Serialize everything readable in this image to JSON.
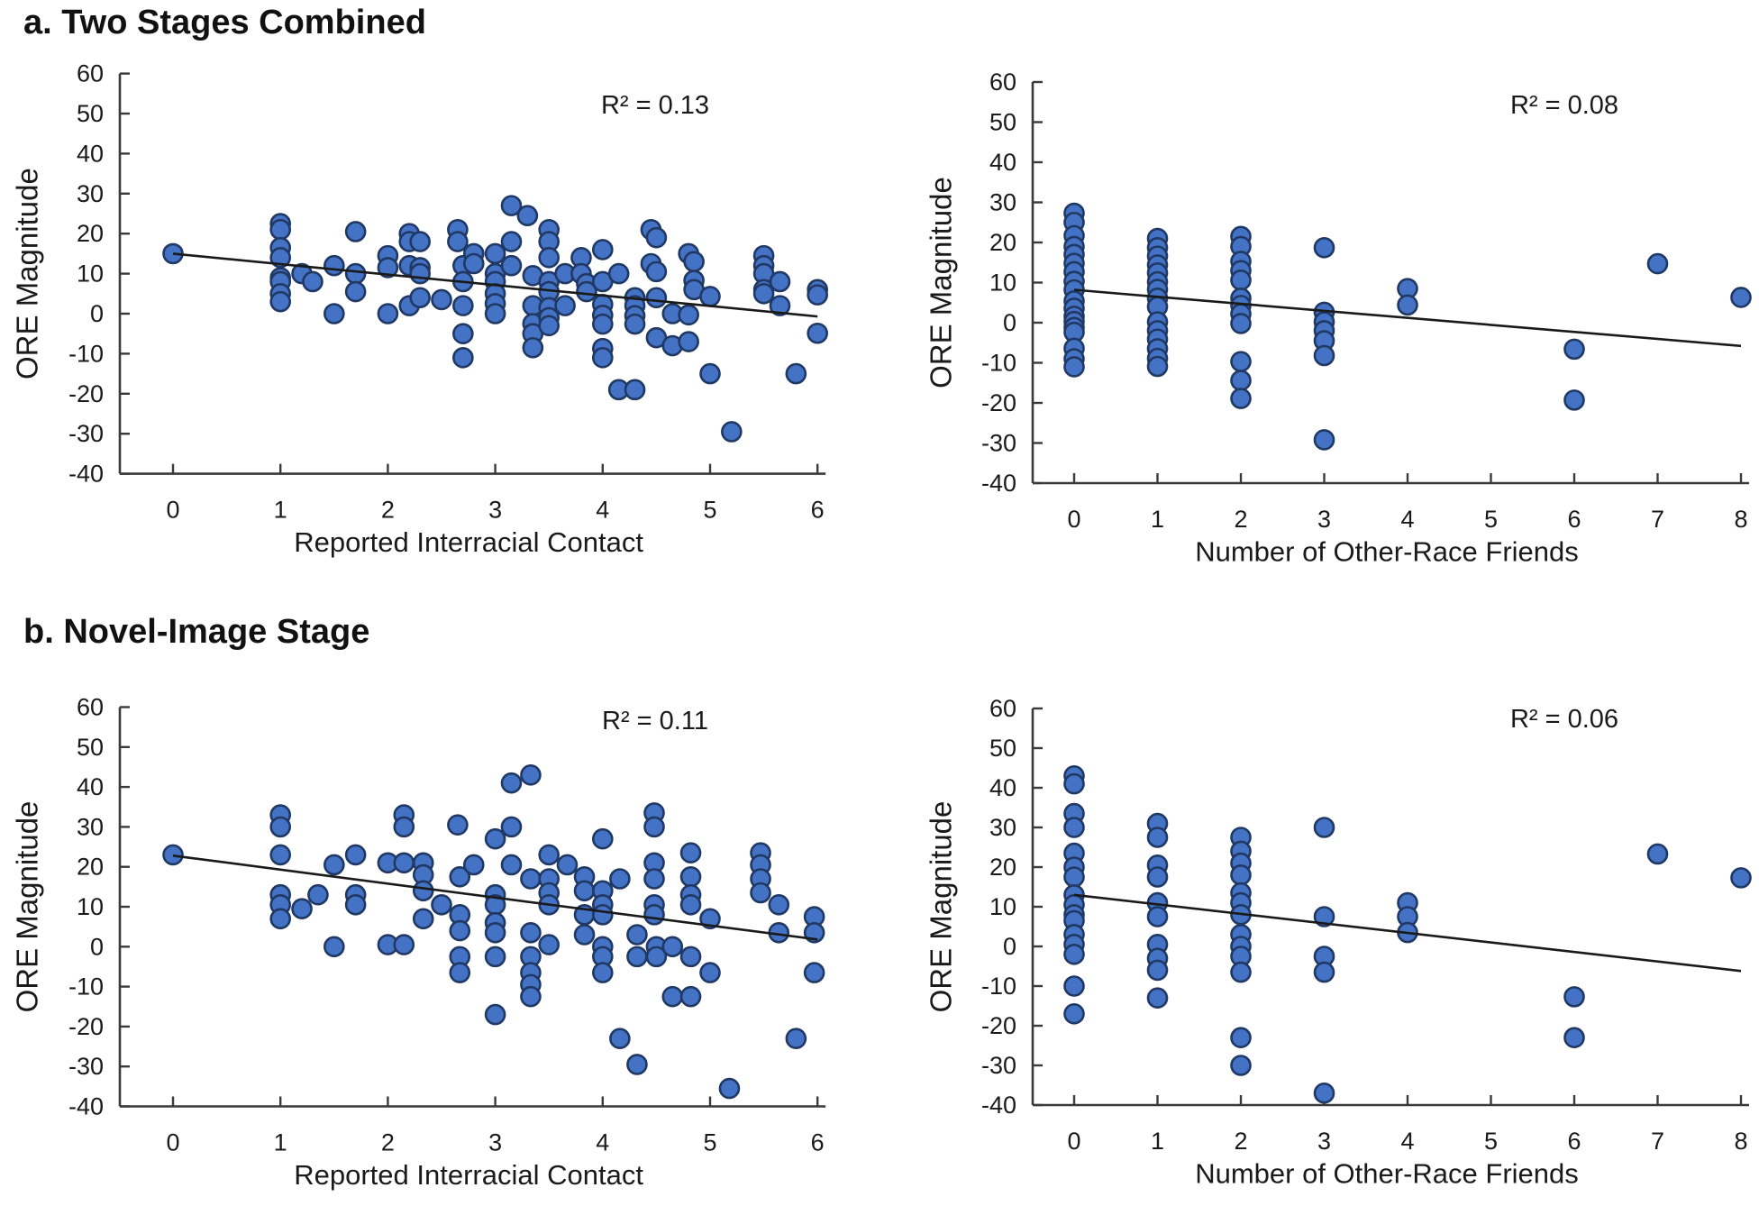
{
  "figure": {
    "panel_a_label": "a. Two Stages Combined",
    "panel_b_label": "b. Novel-Image Stage"
  },
  "colors": {
    "marker_fill": "#4472C4",
    "marker_stroke": "#203864",
    "trendline": "#1a1a1a",
    "axis": "#3a3a3a",
    "text": "#1a1a1a"
  },
  "chart_data": [
    {
      "id": "combined-contact",
      "type": "scatter",
      "panel": "a",
      "r2_label": "R² = 0.13",
      "xlabel": "Reported Interracial Contact",
      "ylabel": "ORE Magnitude",
      "xlim": [
        0,
        6
      ],
      "ylim": [
        -40,
        60
      ],
      "xticks": [
        0,
        1,
        2,
        3,
        4,
        5,
        6
      ],
      "yticks": [
        60,
        50,
        40,
        30,
        20,
        10,
        0,
        -10,
        -20,
        -30,
        -40
      ],
      "grid": false,
      "legend": "none",
      "trendline": {
        "x1": 0,
        "y1": 15,
        "x2": 6,
        "y2": -0.7
      },
      "points": [
        [
          0,
          15
        ],
        [
          1,
          22.5
        ],
        [
          1,
          21
        ],
        [
          1,
          16.5
        ],
        [
          1,
          14
        ],
        [
          1,
          9
        ],
        [
          1,
          8
        ],
        [
          1,
          5
        ],
        [
          1,
          3
        ],
        [
          1.2,
          10
        ],
        [
          1.3,
          8
        ],
        [
          1.5,
          12
        ],
        [
          1.5,
          0
        ],
        [
          1.7,
          20.5
        ],
        [
          1.7,
          10
        ],
        [
          1.7,
          5.5
        ],
        [
          2,
          14.5
        ],
        [
          2,
          11.5
        ],
        [
          2,
          0
        ],
        [
          2.2,
          20
        ],
        [
          2.2,
          18
        ],
        [
          2.2,
          12
        ],
        [
          2.2,
          2
        ],
        [
          2.3,
          18
        ],
        [
          2.3,
          11.5
        ],
        [
          2.3,
          10
        ],
        [
          2.3,
          4
        ],
        [
          2.5,
          3.5
        ],
        [
          2.65,
          21
        ],
        [
          2.65,
          18
        ],
        [
          2.7,
          12
        ],
        [
          2.7,
          8
        ],
        [
          2.7,
          2
        ],
        [
          2.7,
          -5
        ],
        [
          2.7,
          -11
        ],
        [
          2.8,
          15
        ],
        [
          2.8,
          12.5
        ],
        [
          3,
          15
        ],
        [
          3,
          10
        ],
        [
          3,
          8
        ],
        [
          3,
          5
        ],
        [
          3,
          2.5
        ],
        [
          3,
          0
        ],
        [
          3.15,
          27
        ],
        [
          3.3,
          24.5
        ],
        [
          3.15,
          18
        ],
        [
          3.15,
          12
        ],
        [
          3.35,
          9.5
        ],
        [
          3.35,
          2
        ],
        [
          3.35,
          -2.5
        ],
        [
          3.35,
          -5
        ],
        [
          3.35,
          -8.5
        ],
        [
          3.5,
          21
        ],
        [
          3.5,
          18
        ],
        [
          3.5,
          14
        ],
        [
          3.5,
          8
        ],
        [
          3.5,
          5.5
        ],
        [
          3.5,
          1.5
        ],
        [
          3.5,
          -1
        ],
        [
          3.5,
          -3
        ],
        [
          3.65,
          10
        ],
        [
          3.65,
          2
        ],
        [
          3.8,
          14
        ],
        [
          3.8,
          10
        ],
        [
          3.85,
          7.5
        ],
        [
          3.85,
          5.5
        ],
        [
          4,
          16
        ],
        [
          4,
          8
        ],
        [
          4,
          2.3
        ],
        [
          4,
          -0.4
        ],
        [
          4,
          -2.6
        ],
        [
          4,
          -8.7
        ],
        [
          4,
          -11
        ],
        [
          4.15,
          10
        ],
        [
          4.15,
          -19
        ],
        [
          4.3,
          -19
        ],
        [
          4.3,
          4
        ],
        [
          4.3,
          2
        ],
        [
          4.3,
          -0.5
        ],
        [
          4.3,
          -2.6
        ],
        [
          4.45,
          21
        ],
        [
          4.5,
          19
        ],
        [
          4.45,
          12.5
        ],
        [
          4.5,
          10.5
        ],
        [
          4.5,
          4
        ],
        [
          4.5,
          -6
        ],
        [
          4.65,
          0
        ],
        [
          4.8,
          -0.3
        ],
        [
          4.65,
          -8
        ],
        [
          4.8,
          -7
        ],
        [
          4.8,
          15
        ],
        [
          4.85,
          13
        ],
        [
          4.85,
          8.3
        ],
        [
          4.85,
          6
        ],
        [
          5,
          4.3
        ],
        [
          5,
          -15
        ],
        [
          5.2,
          -29.5
        ],
        [
          5.5,
          14.5
        ],
        [
          5.5,
          12
        ],
        [
          5.5,
          10
        ],
        [
          5.5,
          6
        ],
        [
          5.5,
          5
        ],
        [
          5.65,
          8
        ],
        [
          5.65,
          2
        ],
        [
          5.8,
          -15
        ],
        [
          6,
          6
        ],
        [
          6,
          4.7
        ],
        [
          6,
          -4.9
        ]
      ]
    },
    {
      "id": "combined-friends",
      "type": "scatter",
      "panel": "a",
      "r2_label": "R² = 0.08",
      "xlabel": "Number of Other-Race Friends",
      "ylabel": "ORE Magnitude",
      "xlim": [
        0,
        8
      ],
      "ylim": [
        -40,
        60
      ],
      "xticks": [
        0,
        1,
        2,
        3,
        4,
        5,
        6,
        7,
        8
      ],
      "yticks": [
        60,
        50,
        40,
        30,
        20,
        10,
        0,
        -10,
        -20,
        -30,
        -40
      ],
      "grid": false,
      "legend": "none",
      "trendline": {
        "x1": 0,
        "y1": 8.2,
        "x2": 8,
        "y2": -5.8
      },
      "points": [
        [
          0,
          27.3
        ],
        [
          0,
          25
        ],
        [
          0,
          21.7
        ],
        [
          0,
          19
        ],
        [
          0,
          17
        ],
        [
          0,
          14.8
        ],
        [
          0,
          12.7
        ],
        [
          0,
          10.3
        ],
        [
          0,
          8.2
        ],
        [
          0,
          5.4
        ],
        [
          0,
          3.6
        ],
        [
          0,
          1.6
        ],
        [
          0,
          0.3
        ],
        [
          0,
          -1.2
        ],
        [
          0,
          -2.4
        ],
        [
          0,
          -6.4
        ],
        [
          0,
          -9
        ],
        [
          0,
          -11
        ],
        [
          1,
          21
        ],
        [
          1,
          18.7
        ],
        [
          1,
          16.6
        ],
        [
          1,
          14.4
        ],
        [
          1,
          12.4
        ],
        [
          1,
          10.2
        ],
        [
          1,
          8.3
        ],
        [
          1,
          6.1
        ],
        [
          1,
          4
        ],
        [
          1,
          0.2
        ],
        [
          1,
          -2
        ],
        [
          1,
          -4.1
        ],
        [
          1,
          -6.5
        ],
        [
          1,
          -8.9
        ],
        [
          1,
          -10.9
        ],
        [
          2,
          21.5
        ],
        [
          2,
          19
        ],
        [
          2,
          15.3
        ],
        [
          2,
          13
        ],
        [
          2,
          10.6
        ],
        [
          2,
          6.1
        ],
        [
          2,
          4.3
        ],
        [
          2,
          2.2
        ],
        [
          2,
          -0.2
        ],
        [
          2,
          -9.7
        ],
        [
          2,
          -14.4
        ],
        [
          2,
          -18.9
        ],
        [
          3,
          18.7
        ],
        [
          3,
          2.6
        ],
        [
          3,
          0.2
        ],
        [
          3,
          -2
        ],
        [
          3,
          -4.5
        ],
        [
          3,
          -8.2
        ],
        [
          3,
          -29.2
        ],
        [
          4,
          8.5
        ],
        [
          4,
          4.4
        ],
        [
          6,
          -6.6
        ],
        [
          6,
          -19.3
        ],
        [
          7,
          14.7
        ],
        [
          8,
          6.3
        ]
      ]
    },
    {
      "id": "novel-contact",
      "type": "scatter",
      "panel": "b",
      "r2_label": "R² = 0.11",
      "xlabel": "Reported Interracial Contact",
      "ylabel": "ORE Magnitude",
      "xlim": [
        0,
        6
      ],
      "ylim": [
        -40,
        60
      ],
      "xticks": [
        0,
        1,
        2,
        3,
        4,
        5,
        6
      ],
      "yticks": [
        60,
        50,
        40,
        30,
        20,
        10,
        0,
        -10,
        -20,
        -30,
        -40
      ],
      "grid": false,
      "legend": "none",
      "trendline": {
        "x1": 0,
        "y1": 22.8,
        "x2": 6,
        "y2": 1.8
      },
      "points": [
        [
          0,
          23
        ],
        [
          1,
          33
        ],
        [
          1,
          30
        ],
        [
          1,
          23
        ],
        [
          1,
          13
        ],
        [
          1,
          10.5
        ],
        [
          1,
          7
        ],
        [
          1.2,
          9.5
        ],
        [
          1.35,
          13
        ],
        [
          1.5,
          20.5
        ],
        [
          1.5,
          0
        ],
        [
          1.7,
          23
        ],
        [
          1.7,
          13
        ],
        [
          1.7,
          10.5
        ],
        [
          2,
          21
        ],
        [
          2,
          0.5
        ],
        [
          2.15,
          33
        ],
        [
          2.15,
          30
        ],
        [
          2.15,
          21
        ],
        [
          2.15,
          0.5
        ],
        [
          2.33,
          21
        ],
        [
          2.33,
          18
        ],
        [
          2.33,
          14
        ],
        [
          2.33,
          7
        ],
        [
          2.5,
          10.5
        ],
        [
          2.65,
          30.5
        ],
        [
          2.67,
          17.5
        ],
        [
          2.67,
          8
        ],
        [
          2.67,
          4
        ],
        [
          2.67,
          -2.5
        ],
        [
          2.67,
          -6.5
        ],
        [
          2.8,
          20.5
        ],
        [
          3,
          27
        ],
        [
          3,
          13
        ],
        [
          3,
          10.5
        ],
        [
          3,
          6
        ],
        [
          3,
          3.5
        ],
        [
          3,
          -2.5
        ],
        [
          3,
          -17
        ],
        [
          3.15,
          41
        ],
        [
          3.15,
          30
        ],
        [
          3.15,
          20.5
        ],
        [
          3.33,
          43
        ],
        [
          3.33,
          17
        ],
        [
          3.33,
          3.5
        ],
        [
          3.33,
          -2.5
        ],
        [
          3.33,
          -6.5
        ],
        [
          3.33,
          -9.5
        ],
        [
          3.33,
          -12.5
        ],
        [
          3.5,
          23
        ],
        [
          3.5,
          17
        ],
        [
          3.5,
          13.5
        ],
        [
          3.5,
          10.5
        ],
        [
          3.5,
          0.5
        ],
        [
          3.67,
          20.5
        ],
        [
          3.83,
          17.5
        ],
        [
          3.83,
          14
        ],
        [
          3.83,
          8
        ],
        [
          3.83,
          3
        ],
        [
          4,
          27
        ],
        [
          4,
          14
        ],
        [
          4,
          10.5
        ],
        [
          4,
          8
        ],
        [
          4,
          0
        ],
        [
          4,
          -2.5
        ],
        [
          4,
          -6.5
        ],
        [
          4.16,
          17
        ],
        [
          4.16,
          -23
        ],
        [
          4.32,
          3
        ],
        [
          4.32,
          -2.5
        ],
        [
          4.32,
          -29.5
        ],
        [
          4.48,
          33.5
        ],
        [
          4.48,
          30
        ],
        [
          4.48,
          21
        ],
        [
          4.48,
          17
        ],
        [
          4.48,
          10.5
        ],
        [
          4.48,
          8
        ],
        [
          4.5,
          0
        ],
        [
          4.5,
          -2.5
        ],
        [
          4.65,
          0
        ],
        [
          4.65,
          -12.5
        ],
        [
          4.82,
          -12.5
        ],
        [
          4.82,
          23.5
        ],
        [
          4.82,
          17.5
        ],
        [
          4.82,
          13
        ],
        [
          4.82,
          10.5
        ],
        [
          4.82,
          -2.5
        ],
        [
          5,
          7
        ],
        [
          5,
          -6.5
        ],
        [
          5.18,
          -35.5
        ],
        [
          5.47,
          23.5
        ],
        [
          5.47,
          20.5
        ],
        [
          5.47,
          17
        ],
        [
          5.47,
          13.5
        ],
        [
          5.64,
          10.5
        ],
        [
          5.64,
          3.5
        ],
        [
          5.8,
          -23
        ],
        [
          5.97,
          7.5
        ],
        [
          5.97,
          3.5
        ],
        [
          5.97,
          -6.5
        ]
      ]
    },
    {
      "id": "novel-friends",
      "type": "scatter",
      "panel": "b",
      "r2_label": "R² = 0.06",
      "xlabel": "Number of Other-Race Friends",
      "ylabel": "ORE Magnitude",
      "xlim": [
        0,
        8
      ],
      "ylim": [
        -40,
        60
      ],
      "xticks": [
        0,
        1,
        2,
        3,
        4,
        5,
        6,
        7,
        8
      ],
      "yticks": [
        60,
        50,
        40,
        30,
        20,
        10,
        0,
        -10,
        -20,
        -30,
        -40
      ],
      "grid": false,
      "legend": "none",
      "trendline": {
        "x1": 0,
        "y1": 13,
        "x2": 8,
        "y2": -6.2
      },
      "points": [
        [
          0,
          43
        ],
        [
          0,
          41
        ],
        [
          0,
          33.5
        ],
        [
          0,
          30
        ],
        [
          0,
          23.5
        ],
        [
          0,
          20
        ],
        [
          0,
          17.5
        ],
        [
          0,
          13
        ],
        [
          0,
          10.5
        ],
        [
          0,
          8
        ],
        [
          0,
          6.5
        ],
        [
          0,
          3
        ],
        [
          0,
          0.5
        ],
        [
          0,
          -2
        ],
        [
          0,
          -10
        ],
        [
          0,
          -17
        ],
        [
          1,
          31
        ],
        [
          1,
          27.5
        ],
        [
          1,
          20.5
        ],
        [
          1,
          17.5
        ],
        [
          1,
          11
        ],
        [
          1,
          7.5
        ],
        [
          1,
          0.5
        ],
        [
          1,
          -3
        ],
        [
          1,
          -6
        ],
        [
          1,
          -13
        ],
        [
          2,
          27.5
        ],
        [
          2,
          24
        ],
        [
          2,
          21
        ],
        [
          2,
          18
        ],
        [
          2,
          13.5
        ],
        [
          2,
          11
        ],
        [
          2,
          8
        ],
        [
          2,
          3
        ],
        [
          2,
          0
        ],
        [
          2,
          -2.5
        ],
        [
          2,
          -6.5
        ],
        [
          2,
          -23
        ],
        [
          2,
          -30
        ],
        [
          3,
          30
        ],
        [
          3,
          7.5
        ],
        [
          3,
          -2.5
        ],
        [
          3,
          -6.5
        ],
        [
          3,
          -37
        ],
        [
          4,
          11
        ],
        [
          4,
          7.5
        ],
        [
          4,
          3.5
        ],
        [
          6,
          -12.7
        ],
        [
          6,
          -23
        ],
        [
          7,
          23.3
        ],
        [
          8,
          17.3
        ]
      ]
    }
  ]
}
